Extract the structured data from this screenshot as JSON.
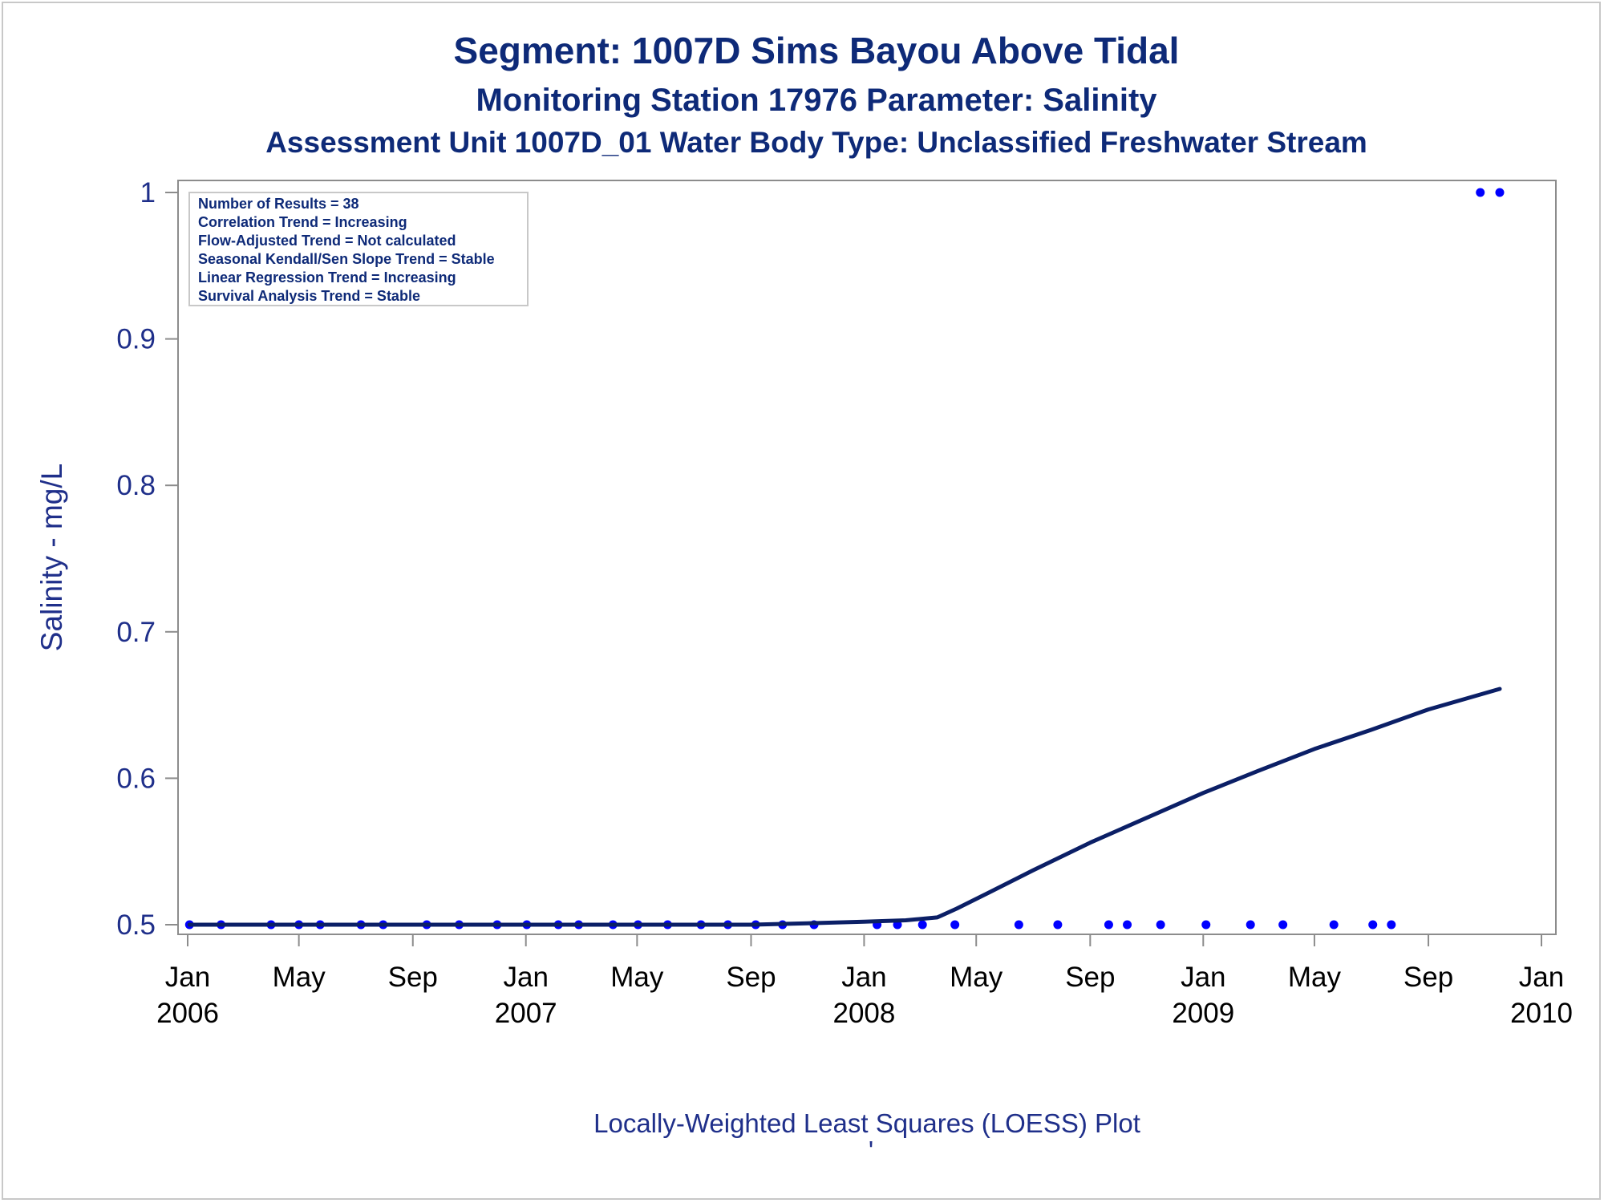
{
  "titles": {
    "line1": "Segment: 1007D  Sims Bayou Above Tidal",
    "line2": "Monitoring Station 17976 Parameter: Salinity",
    "line3": "Assessment Unit 1007D_01   Water Body Type: Unclassified Freshwater Stream"
  },
  "stats_box": [
    "Number of Results = 38",
    "Correlation Trend = Increasing",
    "Flow-Adjusted Trend = Not calculated",
    "Seasonal Kendall/Sen Slope Trend = Stable",
    "Linear Regression Trend = Increasing",
    "Survival Analysis Trend = Stable"
  ],
  "footnote": "Locally-Weighted Least Squares (LOESS) Plot",
  "footnote_mark": "'",
  "colors": {
    "title": "#0e2a78",
    "points": "#0000ff",
    "loess_line": "#0b1f66",
    "axis": "#8c8c8c",
    "y_tick_text": "#1f2f8a",
    "x_tick_text": "#000000"
  },
  "chart_data": {
    "type": "scatter",
    "ylabel": "Salinity - mg/L",
    "xlabel": "",
    "xlim": [
      "2006-01-01",
      "2010-01-01"
    ],
    "ylim": [
      0.5,
      1.0
    ],
    "y_ticks": [
      {
        "value": 0.5,
        "label": "0.5"
      },
      {
        "value": 0.6,
        "label": "0.6"
      },
      {
        "value": 0.7,
        "label": "0.7"
      },
      {
        "value": 0.8,
        "label": "0.8"
      },
      {
        "value": 0.9,
        "label": "0.9"
      },
      {
        "value": 1.0,
        "label": "1"
      }
    ],
    "x_ticks": [
      {
        "date": "2006-01-01",
        "month": "Jan",
        "year": "2006"
      },
      {
        "date": "2006-05-01",
        "month": "May",
        "year": ""
      },
      {
        "date": "2006-09-01",
        "month": "Sep",
        "year": ""
      },
      {
        "date": "2007-01-01",
        "month": "Jan",
        "year": "2007"
      },
      {
        "date": "2007-05-01",
        "month": "May",
        "year": ""
      },
      {
        "date": "2007-09-01",
        "month": "Sep",
        "year": ""
      },
      {
        "date": "2008-01-01",
        "month": "Jan",
        "year": "2008"
      },
      {
        "date": "2008-05-01",
        "month": "May",
        "year": ""
      },
      {
        "date": "2008-09-01",
        "month": "Sep",
        "year": ""
      },
      {
        "date": "2009-01-01",
        "month": "Jan",
        "year": "2009"
      },
      {
        "date": "2009-05-01",
        "month": "May",
        "year": ""
      },
      {
        "date": "2009-09-01",
        "month": "Sep",
        "year": ""
      },
      {
        "date": "2010-01-01",
        "month": "Jan",
        "year": "2010"
      }
    ],
    "grid": false,
    "points": [
      {
        "x": "2006-01-03",
        "y": 0.5
      },
      {
        "x": "2006-02-06",
        "y": 0.5
      },
      {
        "x": "2006-04-01",
        "y": 0.5
      },
      {
        "x": "2006-05-01",
        "y": 0.5
      },
      {
        "x": "2006-05-24",
        "y": 0.5
      },
      {
        "x": "2006-07-07",
        "y": 0.5
      },
      {
        "x": "2006-07-31",
        "y": 0.5
      },
      {
        "x": "2006-09-16",
        "y": 0.5
      },
      {
        "x": "2006-10-21",
        "y": 0.5
      },
      {
        "x": "2006-12-01",
        "y": 0.5
      },
      {
        "x": "2007-01-02",
        "y": 0.5
      },
      {
        "x": "2007-02-05",
        "y": 0.5
      },
      {
        "x": "2007-02-27",
        "y": 0.5
      },
      {
        "x": "2007-04-05",
        "y": 0.5
      },
      {
        "x": "2007-05-02",
        "y": 0.5
      },
      {
        "x": "2007-06-03",
        "y": 0.5
      },
      {
        "x": "2007-07-09",
        "y": 0.5
      },
      {
        "x": "2007-08-07",
        "y": 0.5
      },
      {
        "x": "2007-09-06",
        "y": 0.5
      },
      {
        "x": "2007-10-05",
        "y": 0.5
      },
      {
        "x": "2007-11-08",
        "y": 0.5
      },
      {
        "x": "2008-01-15",
        "y": 0.5
      },
      {
        "x": "2008-02-06",
        "y": 0.5
      },
      {
        "x": "2008-03-04",
        "y": 0.5
      },
      {
        "x": "2008-04-08",
        "y": 0.5
      },
      {
        "x": "2008-06-16",
        "y": 0.5
      },
      {
        "x": "2008-07-28",
        "y": 0.5
      },
      {
        "x": "2008-09-21",
        "y": 0.5
      },
      {
        "x": "2008-10-11",
        "y": 0.5
      },
      {
        "x": "2008-11-16",
        "y": 0.5
      },
      {
        "x": "2009-01-04",
        "y": 0.5
      },
      {
        "x": "2009-02-21",
        "y": 0.5
      },
      {
        "x": "2009-03-28",
        "y": 0.5
      },
      {
        "x": "2009-05-22",
        "y": 0.5
      },
      {
        "x": "2009-07-03",
        "y": 0.5
      },
      {
        "x": "2009-07-23",
        "y": 0.5
      },
      {
        "x": "2009-10-27",
        "y": 1.0
      },
      {
        "x": "2009-11-17",
        "y": 1.0
      }
    ],
    "loess_line": [
      {
        "x": "2006-01-03",
        "y": 0.5
      },
      {
        "x": "2007-09-01",
        "y": 0.5
      },
      {
        "x": "2007-11-01",
        "y": 0.501
      },
      {
        "x": "2008-01-01",
        "y": 0.502
      },
      {
        "x": "2008-02-15",
        "y": 0.503
      },
      {
        "x": "2008-03-20",
        "y": 0.505
      },
      {
        "x": "2008-04-10",
        "y": 0.511
      },
      {
        "x": "2008-05-15",
        "y": 0.522
      },
      {
        "x": "2008-07-01",
        "y": 0.537
      },
      {
        "x": "2008-09-01",
        "y": 0.556
      },
      {
        "x": "2008-11-01",
        "y": 0.573
      },
      {
        "x": "2009-01-01",
        "y": 0.59
      },
      {
        "x": "2009-03-01",
        "y": 0.605
      },
      {
        "x": "2009-05-01",
        "y": 0.62
      },
      {
        "x": "2009-07-01",
        "y": 0.633
      },
      {
        "x": "2009-09-01",
        "y": 0.647
      },
      {
        "x": "2009-11-17",
        "y": 0.661
      }
    ]
  }
}
